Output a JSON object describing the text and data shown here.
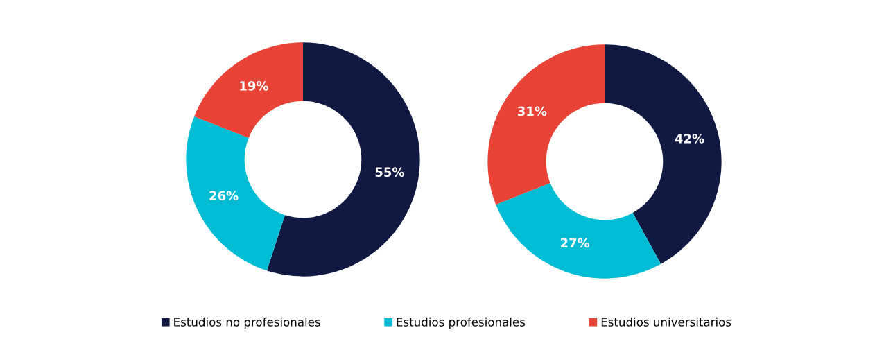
{
  "chart_data": [
    {
      "type": "donut",
      "categories": [
        "Estudios no profesionales",
        "Estudios profesionales",
        "Estudios universitarios"
      ],
      "values": [
        55,
        26,
        19
      ],
      "colors": [
        "#0f1941",
        "#00bcd4",
        "#e84336"
      ],
      "value_labels": [
        "55%",
        "26%",
        "19%"
      ],
      "legend": "bottom"
    },
    {
      "type": "donut",
      "categories": [
        null,
        null,
        null
      ],
      "values": [
        42,
        27,
        31
      ],
      "colors": [
        "#0f1941",
        "#00bcd4",
        "#e84336"
      ],
      "value_labels": [
        "42%",
        "27%",
        "31%"
      ]
    }
  ]
}
